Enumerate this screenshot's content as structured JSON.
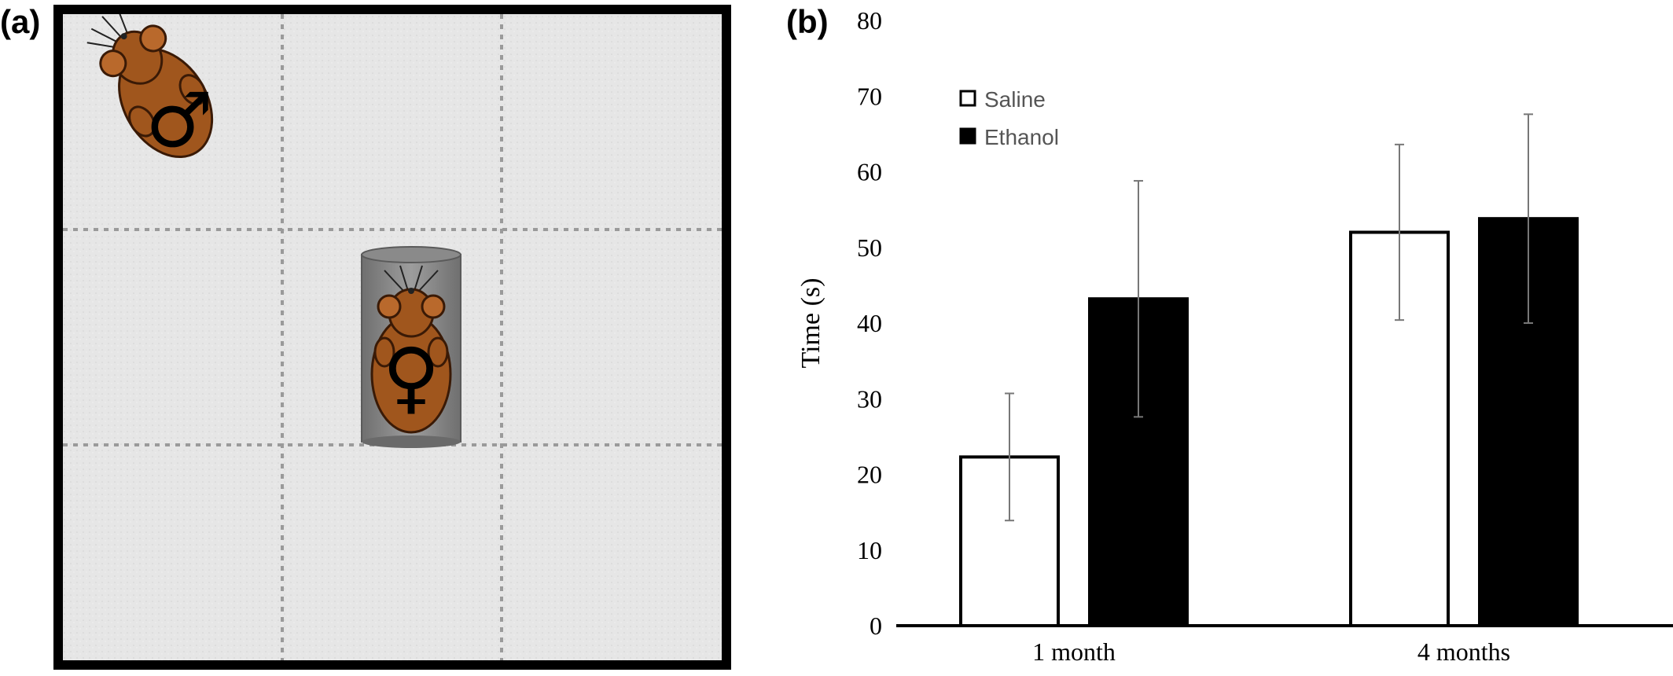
{
  "panels": {
    "a_label": "(a)",
    "b_label": "(b)"
  },
  "arena": {
    "grid": "3x3",
    "colors": {
      "floor": "#e6e6e6",
      "border": "#000000",
      "grid_line": "#9a9a9a",
      "mouse": "#a0561d",
      "cylinder": "#8a8a8a"
    },
    "male_symbol": "♂",
    "female_symbol": "♀",
    "icons": [
      "male-mouse-icon",
      "female-mouse-icon",
      "cylinder-icon"
    ]
  },
  "chart_data": {
    "type": "bar",
    "categories": [
      "1 month",
      "4 months"
    ],
    "series": [
      {
        "name": "Saline",
        "values": [
          22.3,
          52.0
        ],
        "errors": [
          8.4,
          11.6
        ],
        "color": "#ffffff"
      },
      {
        "name": "Ethanol",
        "values": [
          43.2,
          53.8
        ],
        "errors": [
          15.6,
          13.8
        ],
        "color": "#000000"
      }
    ],
    "title": "",
    "xlabel": "",
    "ylabel": "Time (s)",
    "ylim": [
      0,
      80
    ],
    "yticks": [
      "0",
      "10",
      "20",
      "30",
      "40",
      "50",
      "60",
      "70",
      "80"
    ],
    "grid": false,
    "legend_position": "top-left",
    "legend": [
      "Saline",
      "Ethanol"
    ]
  }
}
